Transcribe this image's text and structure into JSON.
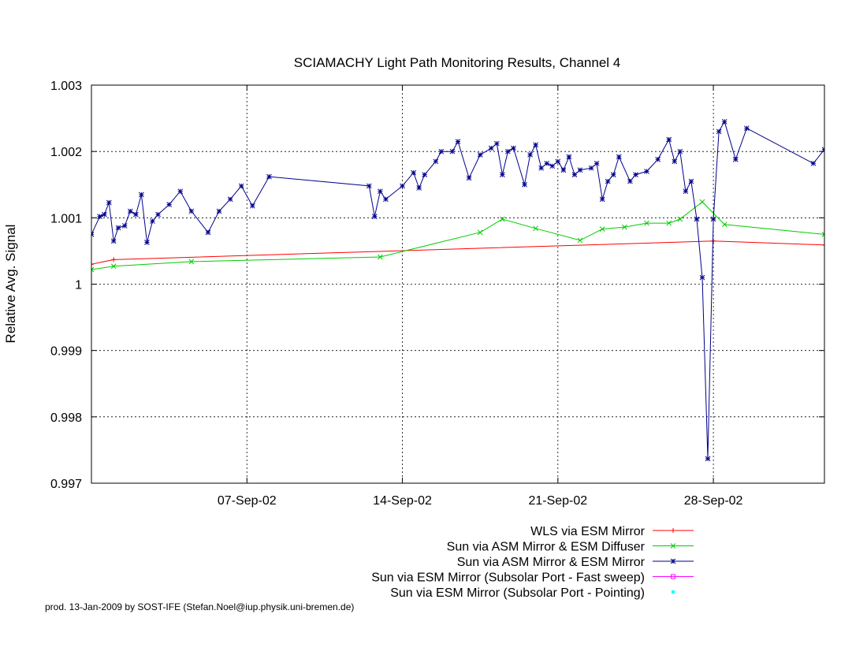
{
  "chart_data": {
    "type": "line",
    "title": "SCIAMACHY Light Path Monitoring Results, Channel 4",
    "xlabel": "",
    "ylabel": "Relative Avg. Signal",
    "xlim": [
      "2002-08-31T00:00",
      "2002-10-03T00:00"
    ],
    "ylim": [
      0.997,
      1.003
    ],
    "yticks": [
      0.997,
      0.998,
      0.999,
      1,
      1.001,
      1.002,
      1.003
    ],
    "ytick_labels": [
      "0.997",
      "0.998",
      "0.999",
      "1",
      "1.001",
      "1.002",
      "1.003"
    ],
    "xticks": [
      "2002-09-07T00:00",
      "2002-09-14T00:00",
      "2002-09-21T00:00",
      "2002-09-28T00:00"
    ],
    "xtick_labels": [
      "07-Sep-02",
      "14-Sep-02",
      "21-Sep-02",
      "28-Sep-02"
    ],
    "grid": true,
    "legend_position": "bottom-right",
    "series": [
      {
        "name": "WLS via ESM Mirror",
        "color": "#ff0000",
        "marker": "plus",
        "x": [
          "2002-08-31T00:00",
          "2002-09-01T00:00",
          "2002-09-28T00:00",
          "2002-10-03T00:00"
        ],
        "y": [
          1.0003,
          1.00037,
          1.00065,
          1.00059
        ]
      },
      {
        "name": "Sun via ASM Mirror & ESM Diffuser",
        "color": "#00cc00",
        "marker": "cross",
        "x": [
          "2002-08-31T00:00",
          "2002-09-01T00:00",
          "2002-09-04T12:00",
          "2002-09-13T00:00",
          "2002-09-17T12:00",
          "2002-09-18T12:00",
          "2002-09-20T00:00",
          "2002-09-22T00:00",
          "2002-09-23T00:00",
          "2002-09-24T00:00",
          "2002-09-25T00:00",
          "2002-09-26T00:00",
          "2002-09-26T12:00",
          "2002-09-27T12:00",
          "2002-09-28T12:00",
          "2002-10-03T00:00"
        ],
        "y": [
          1.00022,
          1.00027,
          1.00034,
          1.00041,
          1.00078,
          1.00098,
          1.00084,
          1.00066,
          1.00083,
          1.00086,
          1.00092,
          1.00092,
          1.00098,
          1.00124,
          1.0009,
          1.00075
        ]
      },
      {
        "name": "Sun via ASM Mirror & ESM Mirror",
        "color": "#00008b",
        "marker": "star",
        "x": [
          "2002-08-31T00:00",
          "2002-08-31T09:00",
          "2002-08-31T14:00",
          "2002-08-31T19:00",
          "2002-09-01T00:00",
          "2002-09-01T05:00",
          "2002-09-01T12:00",
          "2002-09-01T18:00",
          "2002-09-02T00:00",
          "2002-09-02T06:00",
          "2002-09-02T12:00",
          "2002-09-02T18:00",
          "2002-09-03T00:00",
          "2002-09-03T12:00",
          "2002-09-04T00:00",
          "2002-09-04T12:00",
          "2002-09-05T06:00",
          "2002-09-05T18:00",
          "2002-09-06T06:00",
          "2002-09-06T18:00",
          "2002-09-07T06:00",
          "2002-09-08T00:00",
          "2002-09-12T12:00",
          "2002-09-12T18:00",
          "2002-09-13T00:00",
          "2002-09-13T06:00",
          "2002-09-14T00:00",
          "2002-09-14T12:00",
          "2002-09-14T18:00",
          "2002-09-15T00:00",
          "2002-09-15T12:00",
          "2002-09-15T18:00",
          "2002-09-16T06:00",
          "2002-09-16T12:00",
          "2002-09-17T00:00",
          "2002-09-17T12:00",
          "2002-09-18T00:00",
          "2002-09-18T06:00",
          "2002-09-18T12:00",
          "2002-09-18T18:00",
          "2002-09-19T00:00",
          "2002-09-19T12:00",
          "2002-09-19T18:00",
          "2002-09-20T00:00",
          "2002-09-20T06:00",
          "2002-09-20T12:00",
          "2002-09-20T18:00",
          "2002-09-21T00:00",
          "2002-09-21T06:00",
          "2002-09-21T12:00",
          "2002-09-21T18:00",
          "2002-09-22T00:00",
          "2002-09-22T12:00",
          "2002-09-22T18:00",
          "2002-09-23T00:00",
          "2002-09-23T06:00",
          "2002-09-23T12:00",
          "2002-09-23T18:00",
          "2002-09-24T06:00",
          "2002-09-24T12:00",
          "2002-09-25T00:00",
          "2002-09-25T12:00",
          "2002-09-26T00:00",
          "2002-09-26T06:00",
          "2002-09-26T12:00",
          "2002-09-26T18:00",
          "2002-09-27T00:00",
          "2002-09-27T06:00",
          "2002-09-27T12:00",
          "2002-09-27T18:00",
          "2002-09-28T00:00",
          "2002-09-28T06:00",
          "2002-09-28T12:00",
          "2002-09-29T00:00",
          "2002-09-29T12:00",
          "2002-10-02T12:00",
          "2002-10-03T00:00"
        ],
        "y": [
          1.00075,
          1.00102,
          1.00105,
          1.00123,
          1.00065,
          1.00085,
          1.00088,
          1.0011,
          1.00105,
          1.00135,
          1.00063,
          1.00095,
          1.00105,
          1.0012,
          1.0014,
          1.0011,
          1.00078,
          1.0011,
          1.00128,
          1.00148,
          1.00118,
          1.00162,
          1.00148,
          1.00102,
          1.0014,
          1.00128,
          1.00148,
          1.00168,
          1.00145,
          1.00165,
          1.00185,
          1.002,
          1.002,
          1.00215,
          1.0016,
          1.00195,
          1.00205,
          1.00212,
          1.00165,
          1.002,
          1.00205,
          1.0015,
          1.00195,
          1.0021,
          1.00175,
          1.00182,
          1.00178,
          1.00185,
          1.00172,
          1.00192,
          1.00165,
          1.00172,
          1.00175,
          1.00182,
          1.00128,
          1.00155,
          1.00165,
          1.00192,
          1.00155,
          1.00165,
          1.0017,
          1.00188,
          1.00218,
          1.00185,
          1.002,
          1.0014,
          1.00155,
          1.00098,
          1.0001,
          0.99737,
          1.00098,
          1.0023,
          1.00245,
          1.00188,
          1.00235,
          1.00182,
          1.00203
        ]
      },
      {
        "name": "Sun via ESM Mirror (Subsolar Port - Fast sweep)",
        "color": "#ff00ff",
        "marker": "square",
        "x": [],
        "y": []
      },
      {
        "name": "Sun via ESM Mirror (Subsolar Port - Pointing)",
        "color": "#00ffff",
        "marker": "dot",
        "x": [],
        "y": []
      }
    ]
  },
  "footer": {
    "credit": "prod. 13-Jan-2009 by SOST-IFE (Stefan.Noel@iup.physik.uni-bremen.de)"
  }
}
